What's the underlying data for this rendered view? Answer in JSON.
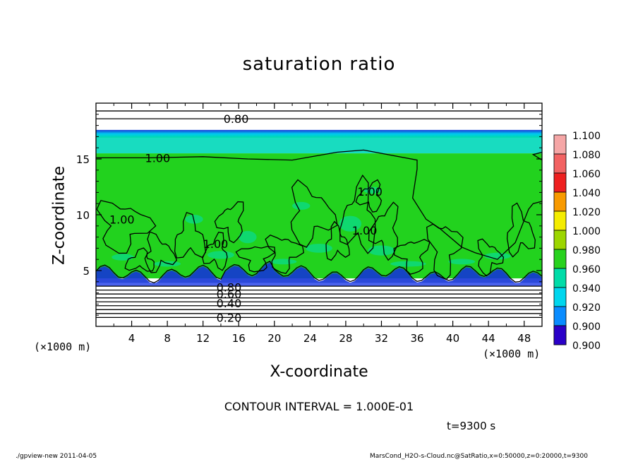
{
  "chart_data": {
    "type": "heatmap",
    "title": "saturation ratio",
    "xlabel": "X-coordinate",
    "ylabel": "Z-coordinate",
    "x_unit_label": "(×1000 m)",
    "xlim": [
      0,
      50
    ],
    "ylim": [
      0,
      20
    ],
    "x_ticks": [
      4,
      8,
      12,
      16,
      20,
      24,
      28,
      32,
      36,
      40,
      44,
      48
    ],
    "y_ticks": [
      5,
      10,
      15
    ],
    "colorbar": {
      "levels": [
        {
          "value": "1.100",
          "color": "#f5a6a6"
        },
        {
          "value": "1.080",
          "color": "#f26262"
        },
        {
          "value": "1.060",
          "color": "#ee2020"
        },
        {
          "value": "1.040",
          "color": "#f89a00"
        },
        {
          "value": "1.020",
          "color": "#f4ec00"
        },
        {
          "value": "1.000",
          "color": "#9cd600"
        },
        {
          "value": "0.980",
          "color": "#28d21e"
        },
        {
          "value": "0.960",
          "color": "#00dca8"
        },
        {
          "value": "0.940",
          "color": "#00d6ee"
        },
        {
          "value": "0.920",
          "color": "#0a8cff"
        },
        {
          "value": "0.900",
          "color": "#2236e8"
        }
      ],
      "bottom_color": "#2a00c8",
      "bottom_label": "0.900"
    },
    "contour_labels": [
      {
        "text": "0.80",
        "x": 14.3,
        "z": 18.6
      },
      {
        "text": "1.00",
        "x": 5.5,
        "z": 15.1
      },
      {
        "text": "1.00",
        "x": 1.5,
        "z": 9.6
      },
      {
        "text": "1.00",
        "x": 12.0,
        "z": 7.4
      },
      {
        "text": "1.00",
        "x": 28.7,
        "z": 8.6
      },
      {
        "text": "1.00",
        "x": 29.3,
        "z": 12.1
      },
      {
        "text": "0.80",
        "x": 13.5,
        "z": 3.5
      },
      {
        "text": "0.60",
        "x": 13.5,
        "z": 2.9
      },
      {
        "text": "0.40",
        "x": 13.5,
        "z": 2.1
      },
      {
        "text": "0.20",
        "x": 13.5,
        "z": 0.8
      }
    ],
    "grid": false
  },
  "contour_interval": "CONTOUR INTERVAL = 1.000E-01",
  "time_label": "t=9300 s",
  "footer": {
    "left": "./gpview-new  2011-04-05",
    "right": "MarsCond_H2O-s-Cloud.nc@SatRatio,x=0:50000,z=0:20000,t=9300"
  }
}
